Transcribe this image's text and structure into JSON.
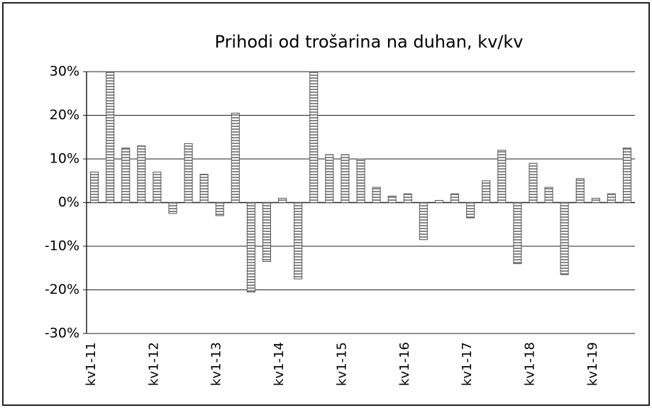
{
  "chart_data": {
    "type": "bar",
    "title": "Prihodi od trošarina na duhan, kv/kv",
    "categories": [
      "kv1-11",
      null,
      null,
      null,
      "kv1-12",
      null,
      null,
      null,
      "kv1-13",
      null,
      null,
      null,
      "kv1-14",
      null,
      null,
      null,
      "kv1-15",
      null,
      null,
      null,
      "kv1-16",
      null,
      null,
      null,
      "kv1-17",
      null,
      null,
      null,
      "kv1-18",
      null,
      null,
      null,
      "kv1-19",
      null,
      null
    ],
    "values": [
      7,
      30,
      12.5,
      13,
      7,
      -2.5,
      13.5,
      6.5,
      -3,
      20.5,
      -20.5,
      -13.5,
      1,
      -17.5,
      30,
      11,
      11,
      10,
      3.5,
      1.5,
      2,
      -8.5,
      0.5,
      2,
      -3.5,
      5,
      12,
      -14,
      9,
      3.5,
      -16.5,
      5.5,
      1,
      2,
      12.5
    ],
    "color": "#555555",
    "ylim": [
      -30,
      30
    ],
    "yticks": [
      {
        "value": -30,
        "label": "-30%"
      },
      {
        "value": -20,
        "label": "-20%"
      },
      {
        "value": -10,
        "label": "-10%"
      },
      {
        "value": 0,
        "label": "0%"
      },
      {
        "value": 10,
        "label": "10%"
      },
      {
        "value": 20,
        "label": "20%"
      },
      {
        "value": 30,
        "label": "30%"
      }
    ],
    "grid": true
  }
}
